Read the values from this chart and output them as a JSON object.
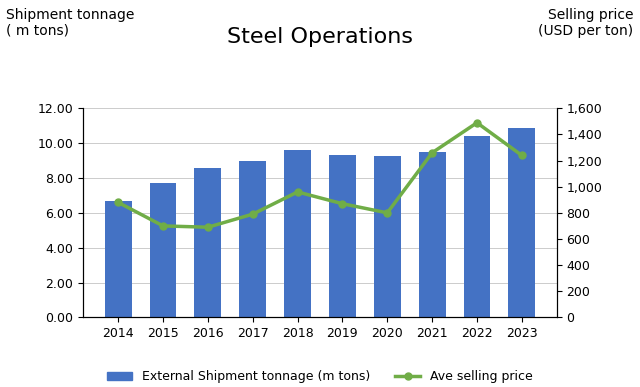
{
  "title": "Steel Operations",
  "label_left_line1": "Shipment tonnage",
  "label_left_line2": "( m tons)",
  "label_right_line1": "Selling price",
  "label_right_line2": "(USD per ton)",
  "years": [
    2014,
    2015,
    2016,
    2017,
    2018,
    2019,
    2020,
    2021,
    2022,
    2023
  ],
  "shipment_tonnage": [
    6.7,
    7.7,
    8.6,
    9.0,
    9.6,
    9.35,
    9.25,
    9.5,
    10.4,
    10.9
  ],
  "selling_price_values": [
    880,
    700,
    690,
    790,
    960,
    870,
    800,
    1260,
    1490,
    1240
  ],
  "bar_color": "#4472C4",
  "line_color": "#70AD47",
  "ylim_left": [
    0,
    12.0
  ],
  "ylim_right": [
    0,
    1600
  ],
  "yticks_left": [
    0.0,
    2.0,
    4.0,
    6.0,
    8.0,
    10.0,
    12.0
  ],
  "yticks_right": [
    0,
    200,
    400,
    600,
    800,
    1000,
    1200,
    1400,
    1600
  ],
  "legend_bar_label": "External Shipment tonnage (m tons)",
  "legend_line_label": "Ave selling price",
  "background_color": "#ffffff",
  "line_width": 2.5,
  "marker": "o",
  "marker_size": 5,
  "title_fontsize": 16,
  "label_fontsize": 10,
  "tick_fontsize": 9
}
